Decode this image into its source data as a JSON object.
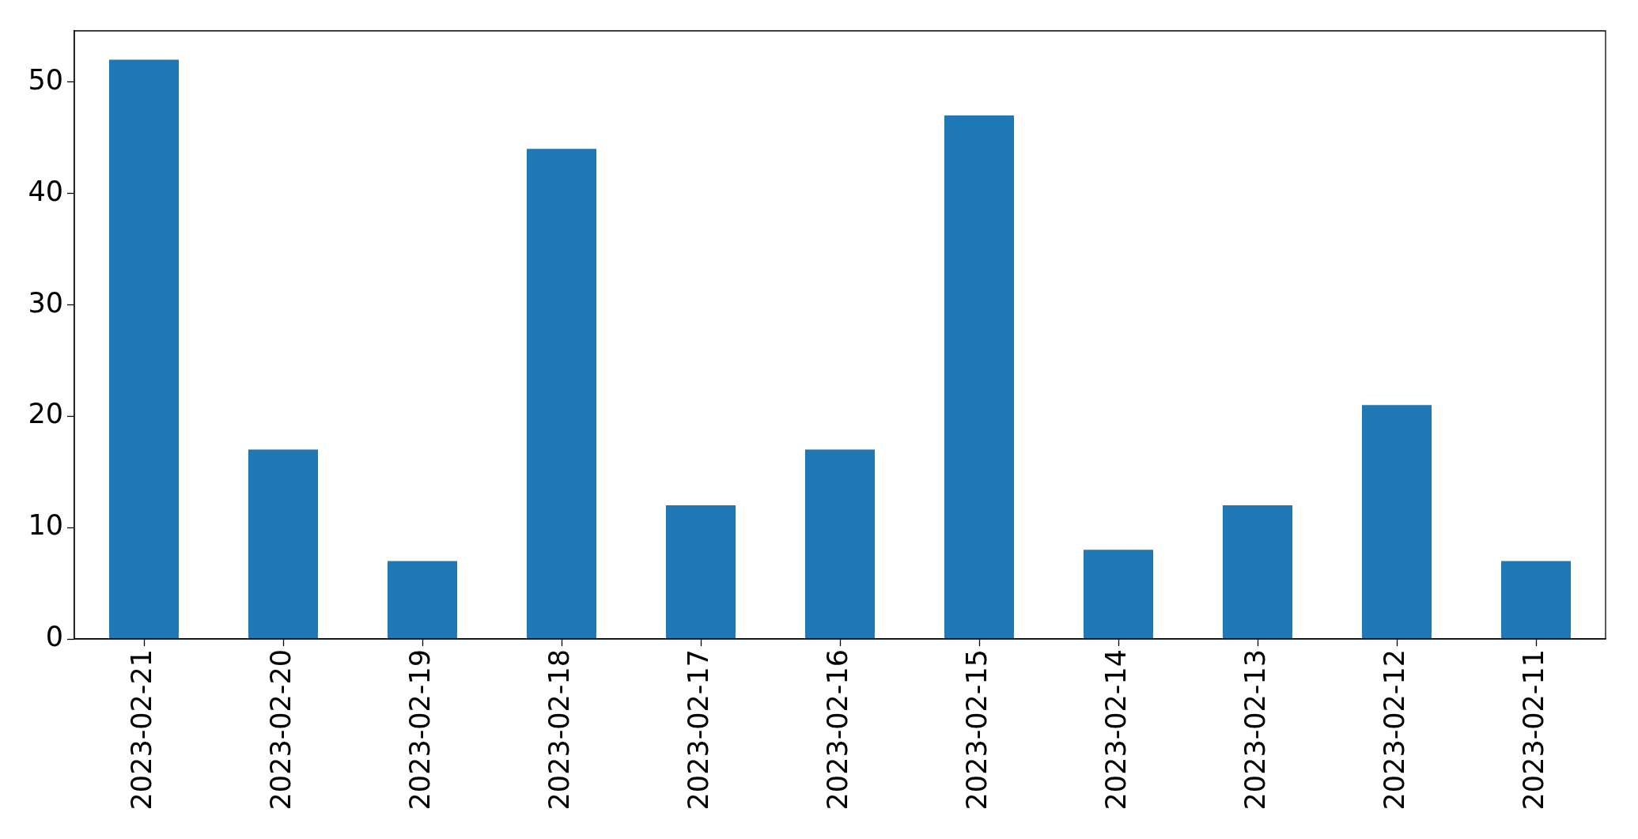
{
  "chart_data": {
    "type": "bar",
    "categories": [
      "2023-02-21",
      "2023-02-20",
      "2023-02-19",
      "2023-02-18",
      "2023-02-17",
      "2023-02-16",
      "2023-02-15",
      "2023-02-14",
      "2023-02-13",
      "2023-02-12",
      "2023-02-11"
    ],
    "values": [
      52,
      17,
      7,
      44,
      12,
      17,
      47,
      8,
      12,
      21,
      7
    ],
    "color": "#1f77b4",
    "ylim": [
      0,
      54.6
    ],
    "yticks": [
      0,
      10,
      20,
      30,
      40,
      50
    ]
  }
}
